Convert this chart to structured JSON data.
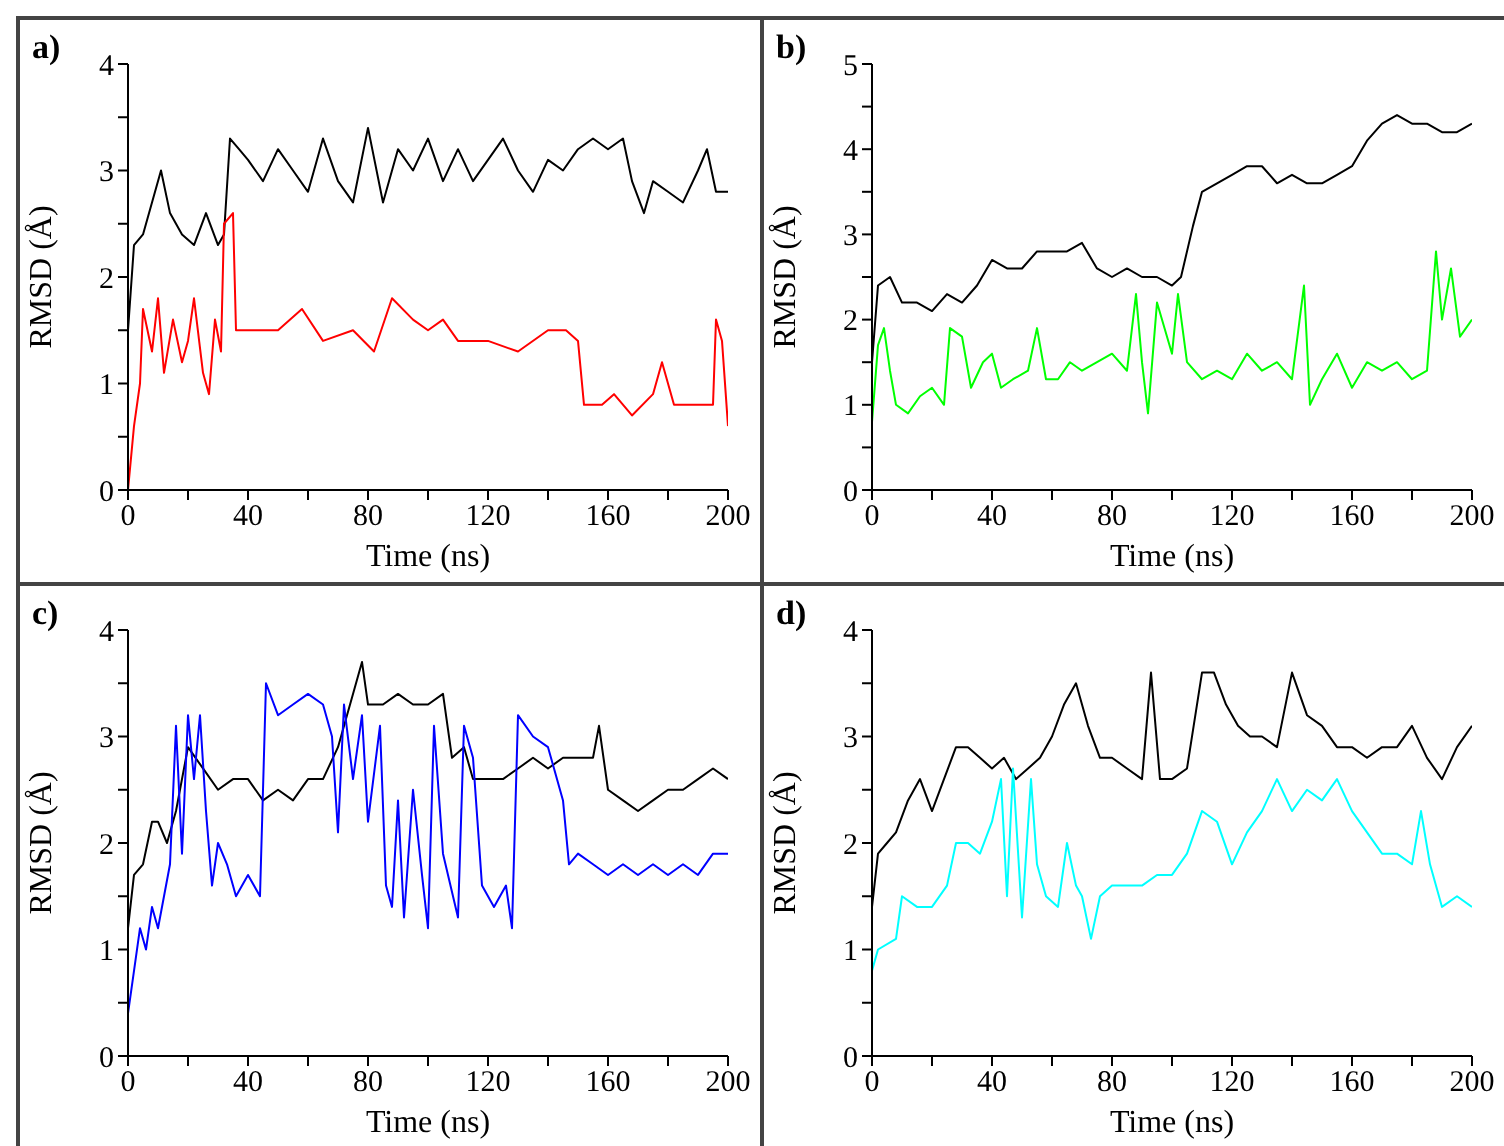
{
  "chart_data": [
    {
      "type": "line",
      "title": "a)",
      "xlabel": "Time (ns)",
      "ylabel": "RMSD (Å)",
      "xlim": [
        0,
        200
      ],
      "ylim": [
        0,
        4
      ],
      "xticks": [
        0,
        {
          "value": 20,
          "label": null
        },
        40,
        {
          "value": 60,
          "label": null
        },
        80,
        {
          "value": 100,
          "label": null
        },
        120,
        {
          "value": 140,
          "label": null
        },
        160,
        {
          "value": 180,
          "label": null
        },
        200
      ],
      "yticks": [
        0,
        {
          "value": 0.5,
          "label": null
        },
        1,
        {
          "value": 1.5,
          "label": null
        },
        2,
        {
          "value": 2.5,
          "label": null
        },
        3,
        {
          "value": 3.5,
          "label": null
        },
        4
      ],
      "grid": false,
      "legend": false,
      "marker": "none",
      "series": [
        {
          "color": "#000000",
          "x": [
            0,
            2,
            5,
            8,
            11,
            14,
            18,
            22,
            26,
            30,
            32,
            34,
            37,
            40,
            45,
            50,
            55,
            60,
            65,
            70,
            75,
            80,
            85,
            90,
            95,
            100,
            105,
            110,
            115,
            120,
            125,
            130,
            135,
            140,
            145,
            150,
            155,
            160,
            165,
            168,
            172,
            175,
            180,
            185,
            190,
            193,
            196,
            200
          ],
          "values": [
            1.5,
            2.3,
            2.4,
            2.7,
            3.0,
            2.6,
            2.4,
            2.3,
            2.6,
            2.3,
            2.4,
            3.3,
            3.2,
            3.1,
            2.9,
            3.2,
            3.0,
            2.8,
            3.3,
            2.9,
            2.7,
            3.4,
            2.7,
            3.2,
            3.0,
            3.3,
            2.9,
            3.2,
            2.9,
            3.1,
            3.3,
            3.0,
            2.8,
            3.1,
            3.0,
            3.2,
            3.3,
            3.2,
            3.3,
            2.9,
            2.6,
            2.9,
            2.8,
            2.7,
            3.0,
            3.2,
            2.8,
            2.8
          ]
        },
        {
          "color": "#ff0000",
          "x": [
            0,
            2,
            4,
            5,
            8,
            10,
            12,
            15,
            18,
            20,
            22,
            25,
            27,
            29,
            31,
            32,
            35,
            36,
            40,
            50,
            58,
            65,
            75,
            82,
            88,
            95,
            100,
            105,
            110,
            120,
            130,
            140,
            146,
            150,
            152,
            158,
            162,
            168,
            175,
            178,
            182,
            188,
            195,
            196,
            198,
            200
          ],
          "values": [
            0,
            0.6,
            1.0,
            1.7,
            1.3,
            1.8,
            1.1,
            1.6,
            1.2,
            1.4,
            1.8,
            1.1,
            0.9,
            1.6,
            1.3,
            2.5,
            2.6,
            1.5,
            1.5,
            1.5,
            1.7,
            1.4,
            1.5,
            1.3,
            1.8,
            1.6,
            1.5,
            1.6,
            1.4,
            1.4,
            1.3,
            1.5,
            1.5,
            1.4,
            0.8,
            0.8,
            0.9,
            0.7,
            0.9,
            1.2,
            0.8,
            0.8,
            0.8,
            1.6,
            1.4,
            0.6
          ]
        }
      ]
    },
    {
      "type": "line",
      "title": "b)",
      "xlabel": "Time (ns)",
      "ylabel": "RMSD (Å)",
      "xlim": [
        0,
        200
      ],
      "ylim": [
        0,
        5
      ],
      "xticks": [
        0,
        {
          "value": 20,
          "label": null
        },
        40,
        {
          "value": 60,
          "label": null
        },
        80,
        {
          "value": 100,
          "label": null
        },
        120,
        {
          "value": 140,
          "label": null
        },
        160,
        {
          "value": 180,
          "label": null
        },
        200
      ],
      "yticks": [
        0,
        {
          "value": 0.5,
          "label": null
        },
        1,
        {
          "value": 1.5,
          "label": null
        },
        2,
        {
          "value": 2.5,
          "label": null
        },
        3,
        {
          "value": 3.5,
          "label": null
        },
        4,
        {
          "value": 4.5,
          "label": null
        },
        5
      ],
      "grid": false,
      "legend": false,
      "marker": "none",
      "series": [
        {
          "color": "#000000",
          "x": [
            0,
            2,
            6,
            10,
            15,
            20,
            25,
            30,
            35,
            40,
            45,
            50,
            55,
            60,
            65,
            70,
            75,
            80,
            85,
            90,
            95,
            100,
            103,
            107,
            110,
            115,
            120,
            125,
            130,
            135,
            140,
            145,
            150,
            155,
            160,
            165,
            170,
            175,
            180,
            185,
            190,
            195,
            200
          ],
          "values": [
            1.5,
            2.4,
            2.5,
            2.2,
            2.2,
            2.1,
            2.3,
            2.2,
            2.4,
            2.7,
            2.6,
            2.6,
            2.8,
            2.8,
            2.8,
            2.9,
            2.6,
            2.5,
            2.6,
            2.5,
            2.5,
            2.4,
            2.5,
            3.1,
            3.5,
            3.6,
            3.7,
            3.8,
            3.8,
            3.6,
            3.7,
            3.6,
            3.6,
            3.7,
            3.8,
            4.1,
            4.3,
            4.4,
            4.3,
            4.3,
            4.2,
            4.2,
            4.3
          ]
        },
        {
          "color": "#00ff00",
          "x": [
            0,
            2,
            4,
            6,
            8,
            12,
            16,
            20,
            24,
            26,
            30,
            33,
            37,
            40,
            43,
            47,
            52,
            55,
            58,
            62,
            66,
            70,
            75,
            80,
            85,
            88,
            90,
            92,
            95,
            100,
            102,
            105,
            110,
            115,
            120,
            125,
            130,
            135,
            140,
            144,
            146,
            150,
            155,
            160,
            165,
            170,
            175,
            180,
            185,
            188,
            190,
            193,
            196,
            200
          ],
          "values": [
            0.8,
            1.7,
            1.9,
            1.4,
            1.0,
            0.9,
            1.1,
            1.2,
            1.0,
            1.9,
            1.8,
            1.2,
            1.5,
            1.6,
            1.2,
            1.3,
            1.4,
            1.9,
            1.3,
            1.3,
            1.5,
            1.4,
            1.5,
            1.6,
            1.4,
            2.3,
            1.5,
            0.9,
            2.2,
            1.6,
            2.3,
            1.5,
            1.3,
            1.4,
            1.3,
            1.6,
            1.4,
            1.5,
            1.3,
            2.4,
            1.0,
            1.3,
            1.6,
            1.2,
            1.5,
            1.4,
            1.5,
            1.3,
            1.4,
            2.8,
            2.0,
            2.6,
            1.8,
            2.0
          ]
        }
      ]
    },
    {
      "type": "line",
      "title": "c)",
      "xlabel": "Time (ns)",
      "ylabel": "RMSD (Å)",
      "xlim": [
        0,
        200
      ],
      "ylim": [
        0,
        4
      ],
      "xticks": [
        0,
        {
          "value": 20,
          "label": null
        },
        40,
        {
          "value": 60,
          "label": null
        },
        80,
        {
          "value": 100,
          "label": null
        },
        120,
        {
          "value": 140,
          "label": null
        },
        160,
        {
          "value": 180,
          "label": null
        },
        200
      ],
      "yticks": [
        0,
        {
          "value": 0.5,
          "label": null
        },
        1,
        {
          "value": 1.5,
          "label": null
        },
        2,
        {
          "value": 2.5,
          "label": null
        },
        3,
        {
          "value": 3.5,
          "label": null
        },
        4
      ],
      "grid": false,
      "legend": false,
      "marker": "none",
      "series": [
        {
          "color": "#000000",
          "x": [
            0,
            2,
            5,
            8,
            10,
            13,
            16,
            20,
            25,
            30,
            35,
            40,
            45,
            50,
            55,
            60,
            65,
            70,
            75,
            78,
            80,
            85,
            90,
            95,
            100,
            105,
            108,
            112,
            115,
            120,
            125,
            130,
            135,
            140,
            145,
            150,
            155,
            157,
            160,
            165,
            170,
            175,
            180,
            185,
            190,
            195,
            200
          ],
          "values": [
            1.2,
            1.7,
            1.8,
            2.2,
            2.2,
            2.0,
            2.3,
            2.9,
            2.7,
            2.5,
            2.6,
            2.6,
            2.4,
            2.5,
            2.4,
            2.6,
            2.6,
            2.9,
            3.4,
            3.7,
            3.3,
            3.3,
            3.4,
            3.3,
            3.3,
            3.4,
            2.8,
            2.9,
            2.6,
            2.6,
            2.6,
            2.7,
            2.8,
            2.7,
            2.8,
            2.8,
            2.8,
            3.1,
            2.5,
            2.4,
            2.3,
            2.4,
            2.5,
            2.5,
            2.6,
            2.7,
            2.6
          ]
        },
        {
          "color": "#0000ff",
          "x": [
            0,
            2,
            4,
            6,
            8,
            10,
            12,
            14,
            16,
            18,
            20,
            22,
            24,
            26,
            28,
            30,
            33,
            36,
            40,
            44,
            46,
            50,
            55,
            60,
            65,
            68,
            70,
            72,
            75,
            78,
            80,
            84,
            86,
            88,
            90,
            92,
            95,
            98,
            100,
            102,
            105,
            110,
            112,
            115,
            118,
            122,
            126,
            128,
            130,
            135,
            140,
            145,
            147,
            150,
            155,
            160,
            165,
            170,
            175,
            180,
            185,
            190,
            195,
            200
          ],
          "values": [
            0.4,
            0.8,
            1.2,
            1.0,
            1.4,
            1.2,
            1.5,
            1.8,
            3.1,
            1.9,
            3.2,
            2.6,
            3.2,
            2.3,
            1.6,
            2.0,
            1.8,
            1.5,
            1.7,
            1.5,
            3.5,
            3.2,
            3.3,
            3.4,
            3.3,
            3.0,
            2.1,
            3.3,
            2.6,
            3.2,
            2.2,
            3.1,
            1.6,
            1.4,
            2.4,
            1.3,
            2.5,
            1.7,
            1.2,
            3.1,
            1.9,
            1.3,
            3.1,
            2.8,
            1.6,
            1.4,
            1.6,
            1.2,
            3.2,
            3.0,
            2.9,
            2.4,
            1.8,
            1.9,
            1.8,
            1.7,
            1.8,
            1.7,
            1.8,
            1.7,
            1.8,
            1.7,
            1.9,
            1.9
          ]
        }
      ]
    },
    {
      "type": "line",
      "title": "d)",
      "xlabel": "Time (ns)",
      "ylabel": "RMSD (Å)",
      "xlim": [
        0,
        200
      ],
      "ylim": [
        0,
        4
      ],
      "xticks": [
        0,
        {
          "value": 20,
          "label": null
        },
        40,
        {
          "value": 60,
          "label": null
        },
        80,
        {
          "value": 100,
          "label": null
        },
        120,
        {
          "value": 140,
          "label": null
        },
        160,
        {
          "value": 180,
          "label": null
        },
        200
      ],
      "yticks": [
        0,
        {
          "value": 0.5,
          "label": null
        },
        1,
        {
          "value": 1.5,
          "label": null
        },
        2,
        {
          "value": 2.5,
          "label": null
        },
        3,
        {
          "value": 3.5,
          "label": null
        },
        4
      ],
      "grid": false,
      "legend": false,
      "marker": "none",
      "series": [
        {
          "color": "#000000",
          "x": [
            0,
            2,
            5,
            8,
            12,
            16,
            20,
            24,
            28,
            32,
            36,
            40,
            44,
            48,
            52,
            56,
            60,
            64,
            68,
            72,
            76,
            80,
            85,
            90,
            93,
            96,
            100,
            105,
            110,
            114,
            118,
            122,
            126,
            130,
            135,
            140,
            145,
            150,
            155,
            160,
            165,
            170,
            175,
            180,
            185,
            190,
            195,
            200
          ],
          "values": [
            1.4,
            1.9,
            2.0,
            2.1,
            2.4,
            2.6,
            2.3,
            2.6,
            2.9,
            2.9,
            2.8,
            2.7,
            2.8,
            2.6,
            2.7,
            2.8,
            3.0,
            3.3,
            3.5,
            3.1,
            2.8,
            2.8,
            2.7,
            2.6,
            3.6,
            2.6,
            2.6,
            2.7,
            3.6,
            3.6,
            3.3,
            3.1,
            3.0,
            3.0,
            2.9,
            3.6,
            3.2,
            3.1,
            2.9,
            2.9,
            2.8,
            2.9,
            2.9,
            3.1,
            2.8,
            2.6,
            2.9,
            3.1
          ]
        },
        {
          "color": "#00ffff",
          "x": [
            0,
            2,
            8,
            10,
            15,
            20,
            25,
            28,
            32,
            36,
            40,
            43,
            45,
            47,
            50,
            53,
            55,
            58,
            62,
            65,
            68,
            70,
            73,
            76,
            80,
            85,
            90,
            95,
            100,
            105,
            110,
            115,
            120,
            125,
            130,
            135,
            140,
            145,
            150,
            155,
            160,
            165,
            170,
            175,
            180,
            183,
            186,
            190,
            195,
            200
          ],
          "values": [
            0.8,
            1.0,
            1.1,
            1.5,
            1.4,
            1.4,
            1.6,
            2.0,
            2.0,
            1.9,
            2.2,
            2.6,
            1.5,
            2.7,
            1.3,
            2.6,
            1.8,
            1.5,
            1.4,
            2.0,
            1.6,
            1.5,
            1.1,
            1.5,
            1.6,
            1.6,
            1.6,
            1.7,
            1.7,
            1.9,
            2.3,
            2.2,
            1.8,
            2.1,
            2.3,
            2.6,
            2.3,
            2.5,
            2.4,
            2.6,
            2.3,
            2.1,
            1.9,
            1.9,
            1.8,
            2.3,
            1.8,
            1.4,
            1.5,
            1.4
          ]
        }
      ]
    }
  ]
}
